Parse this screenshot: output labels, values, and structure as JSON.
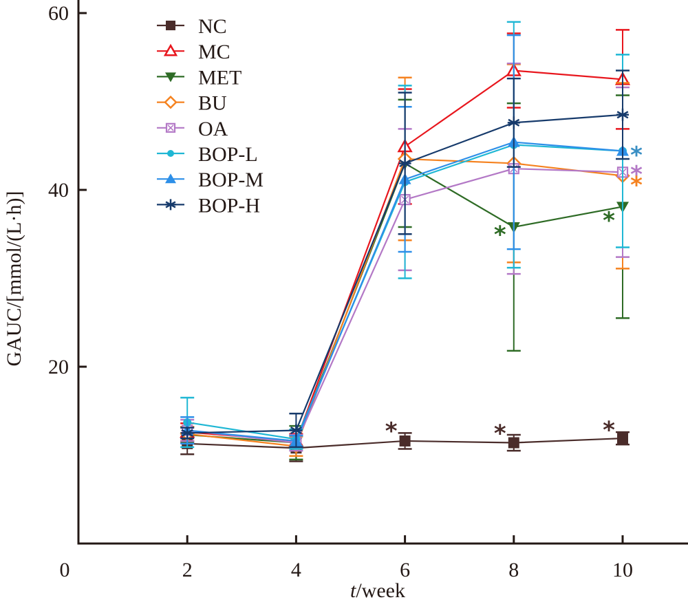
{
  "chart_data": {
    "type": "line",
    "title": "",
    "xlabel_italic": "t",
    "xlabel_rest": "/week",
    "ylabel": "GAUC/[mmol/(L·h)]",
    "xlim": [
      0,
      12
    ],
    "ylim": [
      0,
      60
    ],
    "x_ticks": [
      2,
      4,
      6,
      8,
      10
    ],
    "y_ticks": [
      20,
      40,
      60
    ],
    "origin_label": "0",
    "grid": false,
    "legend_position": "top-left",
    "x": [
      2,
      4,
      6,
      8,
      10
    ],
    "series": [
      {
        "name": "NC",
        "color": "#4a2c2a",
        "marker": "square-filled",
        "values": [
          11.3,
          10.8,
          11.6,
          11.4,
          11.9
        ],
        "err": [
          1.2,
          1.5,
          0.9,
          0.9,
          0.7
        ]
      },
      {
        "name": "MC",
        "color": "#e8161d",
        "marker": "triangle-up-open",
        "values": [
          12.6,
          11.6,
          44.9,
          53.5,
          52.5
        ],
        "err": [
          1.0,
          0.8,
          6.5,
          4.2,
          5.6
        ]
      },
      {
        "name": "MET",
        "color": "#2e6b25",
        "marker": "triangle-down-filled",
        "values": [
          12.3,
          11.4,
          43.0,
          35.8,
          38.1
        ],
        "err": [
          0.9,
          1.9,
          7.2,
          14.0,
          12.6
        ]
      },
      {
        "name": "BU",
        "color": "#f5821f",
        "marker": "diamond-open",
        "values": [
          12.4,
          11.0,
          43.5,
          43.0,
          41.6
        ],
        "err": [
          0.8,
          1.1,
          9.2,
          11.2,
          10.5
        ]
      },
      {
        "name": "OA",
        "color": "#b378c6",
        "marker": "square-x-open",
        "values": [
          12.8,
          11.4,
          38.9,
          42.4,
          42.0
        ],
        "err": [
          1.2,
          0.9,
          8.0,
          11.9,
          9.6
        ]
      },
      {
        "name": "BOP-L",
        "color": "#1fb7d4",
        "marker": "circle-filled",
        "values": [
          13.7,
          11.8,
          40.9,
          45.1,
          44.4
        ],
        "err": [
          2.8,
          1.1,
          10.9,
          13.9,
          10.9
        ]
      },
      {
        "name": "BOP-M",
        "color": "#2d8fe8",
        "marker": "triangle-up-filled",
        "values": [
          12.8,
          11.6,
          41.2,
          45.4,
          44.4
        ],
        "err": [
          1.5,
          0.6,
          8.2,
          12.1,
          0.0
        ]
      },
      {
        "name": "BOP-H",
        "color": "#163a6b",
        "marker": "asterisk",
        "values": [
          12.5,
          12.8,
          43.0,
          47.6,
          48.5
        ],
        "err": [
          0.6,
          1.9,
          8.0,
          5.0,
          5.0
        ]
      }
    ],
    "annotations": [
      {
        "text": "*",
        "x": 6,
        "y": 13.4,
        "color": "#4a2c2a",
        "side": "left"
      },
      {
        "text": "*",
        "x": 8,
        "y": 13.1,
        "color": "#4a2c2a",
        "side": "left"
      },
      {
        "text": "*",
        "x": 10,
        "y": 13.5,
        "color": "#4a2c2a",
        "side": "left"
      },
      {
        "text": "*",
        "x": 8,
        "y": 35.6,
        "color": "#2e6b25",
        "side": "left"
      },
      {
        "text": "*",
        "x": 10,
        "y": 37.2,
        "color": "#2e6b25",
        "side": "left"
      },
      {
        "text": "*",
        "x": 10,
        "y": 44.6,
        "color": "#3a8fc4",
        "side": "right"
      },
      {
        "text": "*",
        "x": 10,
        "y": 42.4,
        "color": "#b378c6",
        "side": "right"
      },
      {
        "text": "*",
        "x": 10,
        "y": 41.2,
        "color": "#f5821f",
        "side": "right"
      }
    ]
  }
}
